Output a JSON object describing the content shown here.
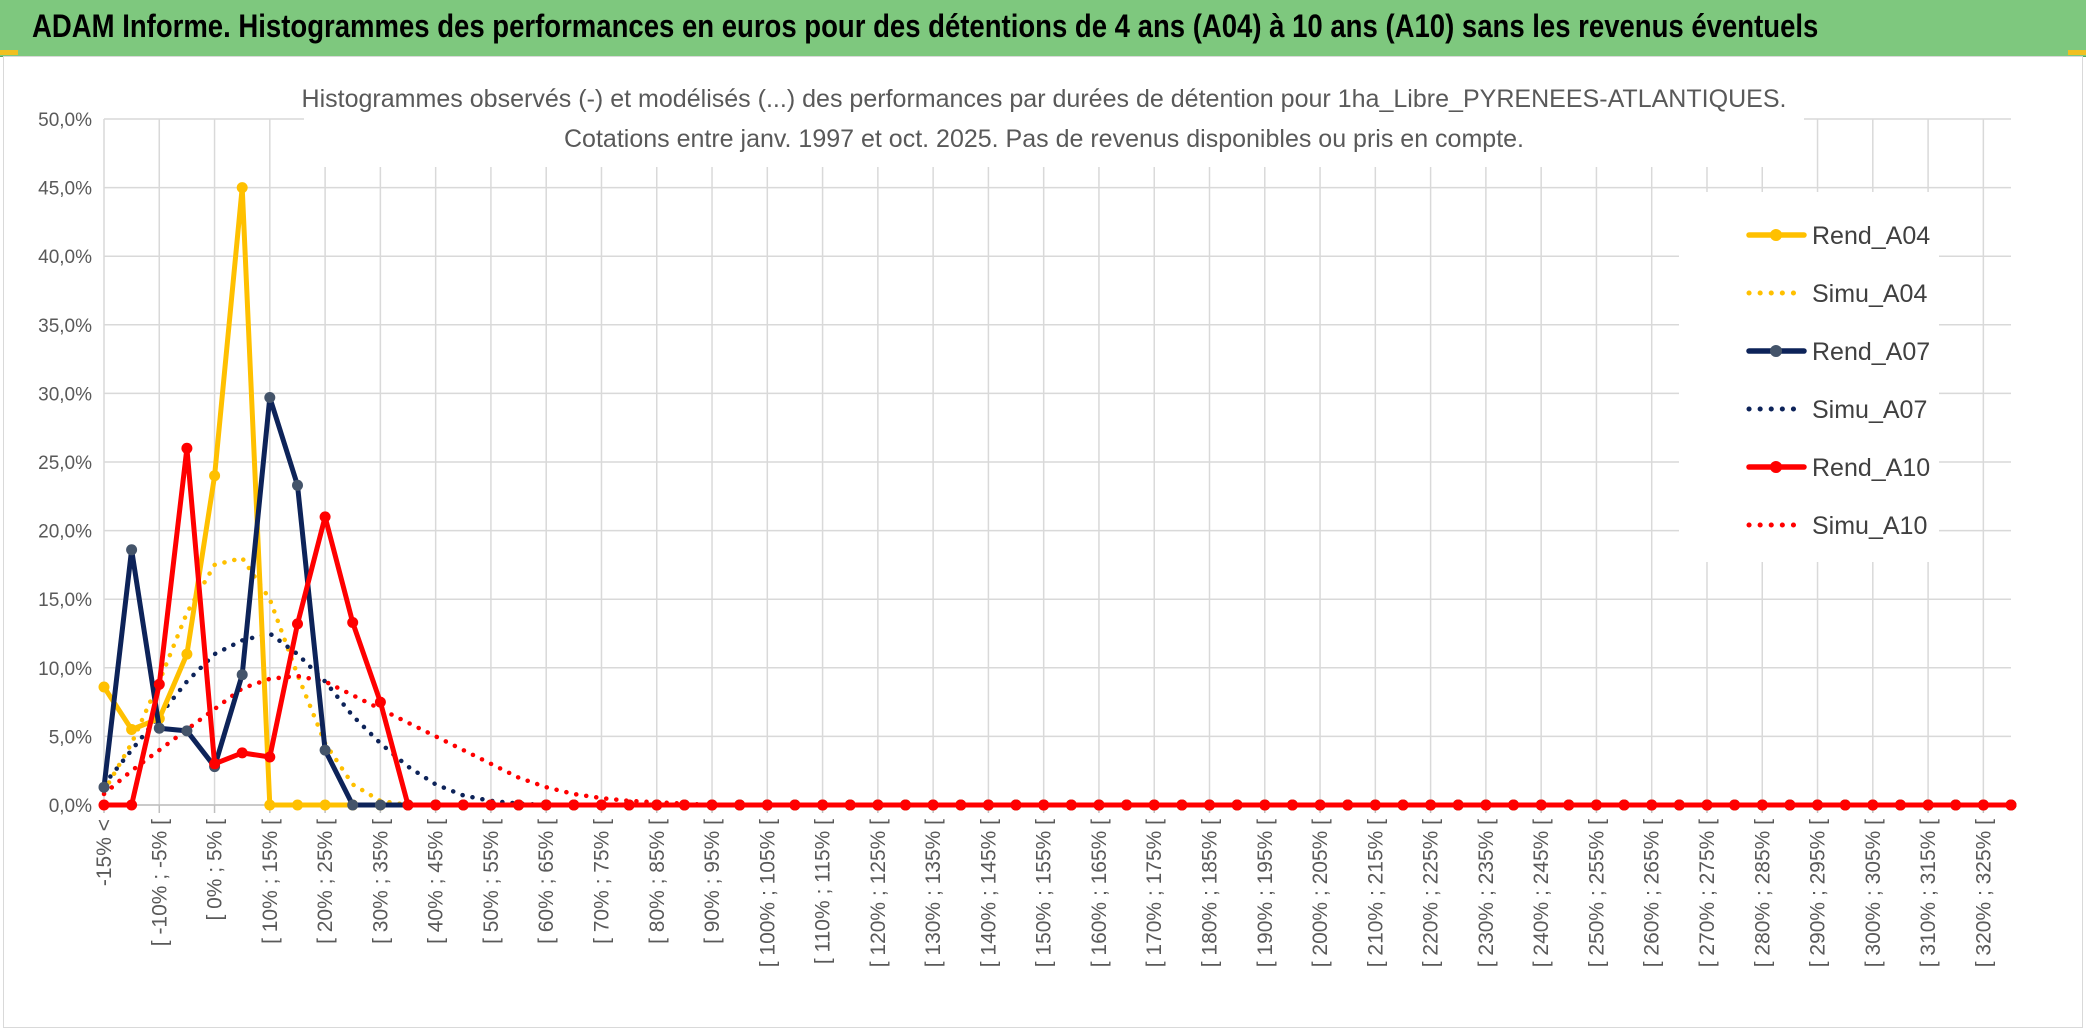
{
  "header": {
    "title": "ADAM Informe. Histogrammes des performances en euros pour des détentions de 4 ans (A04) à 10 ans (A10) sans les revenus éventuels"
  },
  "chart_data": {
    "type": "line",
    "title": "Histogrammes observés (-) et modélisés (...) des performances par durées de détention pour 1ha_Libre_PYRENEES-ATLANTIQUES.",
    "subtitle": "Cotations entre janv. 1997 et oct. 2025. Pas de revenus disponibles ou pris en compte.",
    "xlabel": "",
    "ylabel": "",
    "ylim": [
      0,
      50
    ],
    "y_ticks": [
      "0,0%",
      "5,0%",
      "10,0%",
      "15,0%",
      "20,0%",
      "25,0%",
      "30,0%",
      "35,0%",
      "40,0%",
      "45,0%",
      "50,0%"
    ],
    "grid": true,
    "legend_position": "right",
    "category_count": 70,
    "x_tick_labels": [
      "-15% <",
      "[ -10% ; -5% [",
      "[ 0% ; 5% [",
      "[ 10% ; 15% [",
      "[ 20% ; 25% [",
      "[ 30% ; 35% [",
      "[ 40% ; 45% [",
      "[ 50% ; 55% [",
      "[ 60% ; 65% [",
      "[ 70% ; 75% [",
      "[ 80% ; 85% [",
      "[ 90% ; 95% [",
      "[ 100% ; 105% [",
      "[ 110% ; 115% [",
      "[ 120% ; 125% [",
      "[ 130% ; 135% [",
      "[ 140% ; 145% [",
      "[ 150% ; 155% [",
      "[ 160% ; 165% [",
      "[ 170% ; 175% [",
      "[ 180% ; 185% [",
      "[ 190% ; 195% [",
      "[ 200% ; 205% [",
      "[ 210% ; 215% [",
      "[ 220% ; 225% [",
      "[ 230% ; 235% [",
      "[ 240% ; 245% [",
      "[ 250% ; 255% [",
      "[ 260% ; 265% [",
      "[ 270% ; 275% [",
      "[ 280% ; 285% [",
      "[ 290% ; 295% [",
      "[ 300% ; 305% [",
      "[ 310% ; 315% [",
      "[ 320% ; 325% ["
    ],
    "series": [
      {
        "name": "Rend_A04",
        "color": "#ffc000",
        "style": "solid",
        "markers": false,
        "values": [
          8.6,
          5.5,
          6.3,
          11.0,
          24.0,
          45.0,
          0,
          0,
          0,
          0,
          0,
          0,
          0,
          0,
          0,
          0,
          0,
          0,
          0,
          0,
          0,
          0,
          0,
          0,
          0,
          0,
          0,
          0,
          0,
          0,
          0,
          0,
          0,
          0,
          0,
          0,
          0,
          0,
          0,
          0,
          0,
          0,
          0,
          0,
          0,
          0,
          0,
          0,
          0,
          0,
          0,
          0,
          0,
          0,
          0,
          0,
          0,
          0,
          0,
          0,
          0,
          0,
          0,
          0,
          0,
          0,
          0,
          0,
          0,
          0
        ]
      },
      {
        "name": "Simu_A04",
        "color": "#ffc000",
        "style": "dotted",
        "values": [
          1.0,
          4.5,
          9.0,
          14.0,
          17.5,
          18.0,
          15.0,
          9.5,
          4.5,
          1.5,
          0.3,
          0,
          0,
          0,
          0,
          0,
          0,
          0,
          0,
          0,
          0,
          0,
          0,
          0,
          0,
          0,
          0,
          0,
          0,
          0,
          0,
          0,
          0,
          0,
          0,
          0,
          0,
          0,
          0,
          0,
          0,
          0,
          0,
          0,
          0,
          0,
          0,
          0,
          0,
          0,
          0,
          0,
          0,
          0,
          0,
          0,
          0,
          0,
          0,
          0,
          0,
          0,
          0,
          0,
          0,
          0,
          0,
          0,
          0,
          0
        ]
      },
      {
        "name": "Rend_A07",
        "color": "#0d2359",
        "style": "solid",
        "markers": true,
        "values": [
          1.3,
          18.6,
          5.6,
          5.4,
          2.8,
          9.5,
          29.7,
          23.3,
          4.0,
          0,
          0,
          0,
          0,
          0,
          0,
          0,
          0,
          0,
          0,
          0,
          0,
          0,
          0,
          0,
          0,
          0,
          0,
          0,
          0,
          0,
          0,
          0,
          0,
          0,
          0,
          0,
          0,
          0,
          0,
          0,
          0,
          0,
          0,
          0,
          0,
          0,
          0,
          0,
          0,
          0,
          0,
          0,
          0,
          0,
          0,
          0,
          0,
          0,
          0,
          0,
          0,
          0,
          0,
          0,
          0,
          0,
          0,
          0,
          0,
          0
        ]
      },
      {
        "name": "Simu_A07",
        "color": "#0d2359",
        "style": "dotted",
        "values": [
          1.5,
          4.0,
          6.5,
          9.0,
          11.0,
          12.0,
          12.5,
          11.0,
          9.0,
          6.5,
          4.5,
          2.8,
          1.5,
          0.7,
          0.3,
          0.1,
          0,
          0,
          0,
          0,
          0,
          0,
          0,
          0,
          0,
          0,
          0,
          0,
          0,
          0,
          0,
          0,
          0,
          0,
          0,
          0,
          0,
          0,
          0,
          0,
          0,
          0,
          0,
          0,
          0,
          0,
          0,
          0,
          0,
          0,
          0,
          0,
          0,
          0,
          0,
          0,
          0,
          0,
          0,
          0,
          0,
          0,
          0,
          0,
          0,
          0,
          0,
          0,
          0,
          0
        ]
      },
      {
        "name": "Rend_A10",
        "color": "#ff0000",
        "style": "solid",
        "markers": true,
        "values": [
          0,
          0,
          8.8,
          26.0,
          3.0,
          3.8,
          3.5,
          13.2,
          21.0,
          13.3,
          7.5,
          0,
          0,
          0,
          0,
          0,
          0,
          0,
          0,
          0,
          0,
          0,
          0,
          0,
          0,
          0,
          0,
          0,
          0,
          0,
          0,
          0,
          0,
          0,
          0,
          0,
          0,
          0,
          0,
          0,
          0,
          0,
          0,
          0,
          0,
          0,
          0,
          0,
          0,
          0,
          0,
          0,
          0,
          0,
          0,
          0,
          0,
          0,
          0,
          0,
          0,
          0,
          0,
          0,
          0,
          0,
          0,
          0,
          0,
          0
        ]
      },
      {
        "name": "Simu_A10",
        "color": "#ff0000",
        "style": "dotted",
        "values": [
          0.8,
          2.5,
          4.0,
          5.5,
          7.0,
          8.5,
          9.2,
          9.4,
          9.0,
          8.0,
          7.0,
          6.0,
          5.0,
          4.0,
          3.0,
          2.0,
          1.3,
          0.8,
          0.5,
          0.3,
          0.2,
          0.1,
          0,
          0,
          0,
          0,
          0,
          0,
          0,
          0,
          0,
          0,
          0,
          0,
          0,
          0,
          0,
          0,
          0,
          0,
          0,
          0,
          0,
          0,
          0,
          0,
          0,
          0,
          0,
          0,
          0,
          0,
          0,
          0,
          0,
          0,
          0,
          0,
          0,
          0,
          0,
          0,
          0,
          0,
          0,
          0,
          0,
          0,
          0,
          0
        ]
      }
    ]
  }
}
